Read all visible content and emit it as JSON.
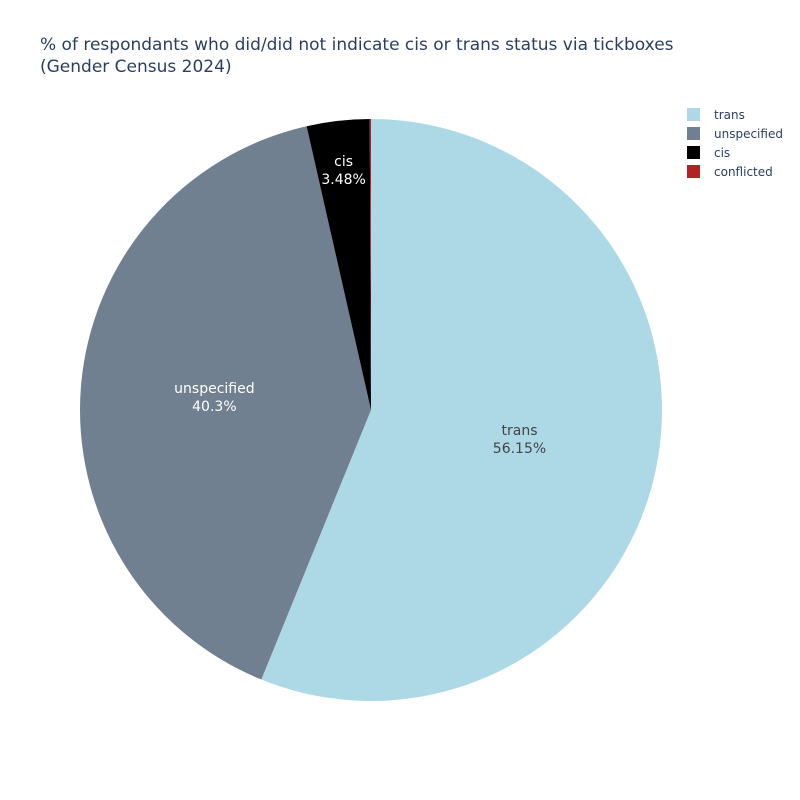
{
  "chart_data": {
    "type": "pie",
    "title_line1": "% of respondants who did/did not indicate cis or trans status via tickboxes",
    "title_line2": "(Gender Census 2024)",
    "legend_position": "top-right",
    "slices": [
      {
        "label": "trans",
        "value": 56.15,
        "display": "56.15%",
        "color": "#add8e6",
        "text_color": "#444444",
        "show_label": true
      },
      {
        "label": "unspecified",
        "value": 40.3,
        "display": "40.3%",
        "color": "#708090",
        "text_color": "#ffffff",
        "show_label": true
      },
      {
        "label": "cis",
        "value": 3.48,
        "display": "3.48%",
        "color": "#000000",
        "text_color": "#ffffff",
        "show_label": true
      },
      {
        "label": "conflicted",
        "value": 0.07,
        "display": "",
        "color": "#b22222",
        "text_color": "#ffffff",
        "show_label": false
      }
    ],
    "legend_order": [
      "trans",
      "unspecified",
      "cis",
      "conflicted"
    ]
  }
}
